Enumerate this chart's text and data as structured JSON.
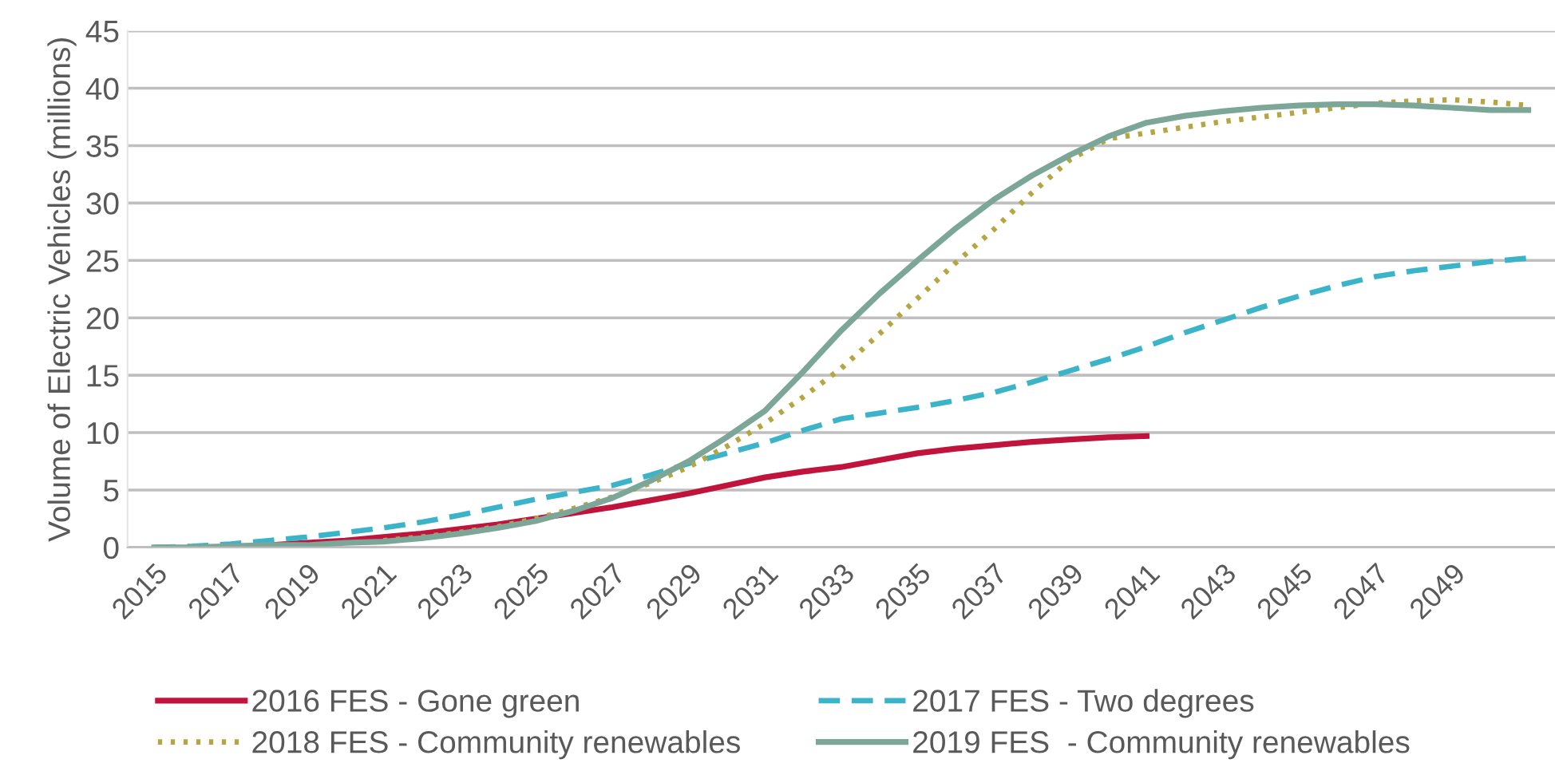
{
  "chart_data": {
    "type": "line",
    "ylabel": "Volume of Electric Vehicles (millions)",
    "categories": [
      "2015",
      null,
      "2017",
      null,
      "2019",
      null,
      "2021",
      null,
      "2023",
      null,
      "2025",
      null,
      "2027",
      null,
      "2029",
      null,
      "2031",
      null,
      "2033",
      null,
      "2035",
      null,
      "2037",
      null,
      "2039",
      null,
      "2041",
      null,
      "2043",
      null,
      "2045",
      null,
      "2047",
      null,
      "2049",
      null,
      null
    ],
    "series": [
      {
        "name": "2016 FES - Gone green",
        "color": "#c0143c",
        "line_style": "solid",
        "values": [
          null,
          null,
          null,
          0.2,
          0.4,
          0.6,
          0.9,
          1.2,
          1.6,
          2.0,
          2.5,
          3.0,
          3.5,
          4.1,
          4.7,
          5.4,
          6.1,
          6.6,
          7.0,
          7.6,
          8.2,
          8.6,
          8.9,
          9.2,
          9.4,
          9.6,
          9.7,
          null,
          null,
          null,
          null,
          null,
          null,
          null,
          null,
          null,
          null
        ]
      },
      {
        "name": "2017 FES - Two degrees",
        "color": "#3bb3c8",
        "line_style": "dashed",
        "values": [
          0,
          0.1,
          0.3,
          0.6,
          0.9,
          1.3,
          1.7,
          2.2,
          2.8,
          3.5,
          4.2,
          4.8,
          5.4,
          6.3,
          7.3,
          8.2,
          9.1,
          10.2,
          11.2,
          11.7,
          12.2,
          12.8,
          13.5,
          14.4,
          15.4,
          16.4,
          17.5,
          18.7,
          19.8,
          20.9,
          21.9,
          22.8,
          23.6,
          24.1,
          24.5,
          24.9,
          25.2
        ]
      },
      {
        "name": "2018 FES - Community renewables",
        "color": "#b5a642",
        "line_style": "dotted",
        "values": [
          null,
          null,
          null,
          null,
          null,
          null,
          0.6,
          0.9,
          1.3,
          1.8,
          2.5,
          3.4,
          4.4,
          5.6,
          7.0,
          8.8,
          10.8,
          13.1,
          15.6,
          18.6,
          21.7,
          24.8,
          27.7,
          30.9,
          33.8,
          35.6,
          36.1,
          36.6,
          37.1,
          37.5,
          37.9,
          38.3,
          38.7,
          38.9,
          39.0,
          38.8,
          38.5
        ]
      },
      {
        "name": "2019 FES  - Community renewables",
        "color": "#7ba698",
        "line_style": "solid",
        "values": [
          0,
          0.0,
          0.1,
          0.2,
          0.2,
          0.4,
          0.5,
          0.8,
          1.2,
          1.7,
          2.3,
          3.2,
          4.3,
          5.8,
          7.5,
          9.6,
          11.9,
          15.3,
          18.9,
          22.1,
          25.0,
          27.8,
          30.3,
          32.4,
          34.2,
          35.8,
          37.0,
          37.6,
          38.0,
          38.3,
          38.5,
          38.6,
          38.6,
          38.5,
          38.3,
          38.1,
          38.1
        ]
      }
    ],
    "ylim": [
      0,
      45
    ],
    "yticks": [
      0,
      5,
      10,
      15,
      20,
      25,
      30,
      35,
      40,
      45
    ],
    "grid": "y",
    "legend": "bottom",
    "marker": "none"
  }
}
